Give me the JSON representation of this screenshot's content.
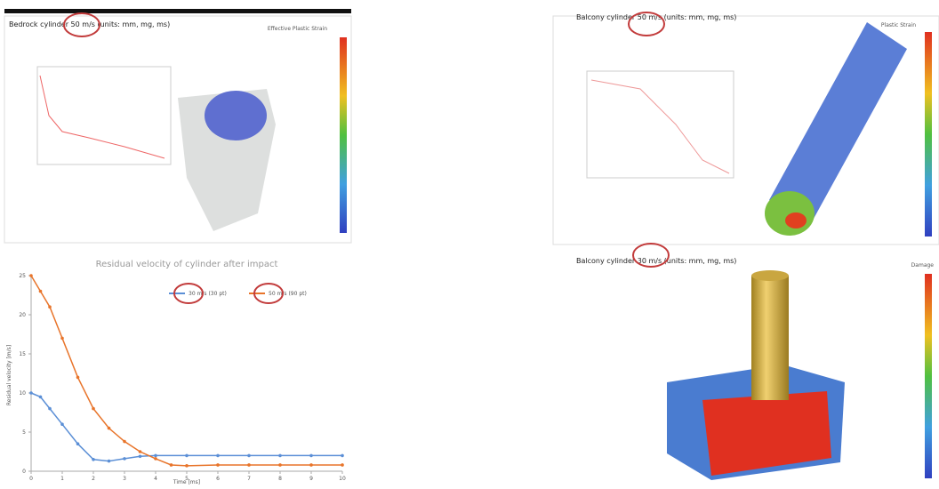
{
  "panels": [
    {
      "title": "Bedrock cylinder 50 m/s (units: mm, mg, ms)",
      "legend": "Effective Plastic Strain"
    },
    {
      "title": "Balcony cylinder 50 m/s (units: mm, mg, ms)",
      "legend": "Plastic Strain"
    },
    {
      "title": "Balcony cylinder 30 m/s (units: mm, mg, ms)",
      "legend": "Damage"
    }
  ],
  "chart_data": {
    "type": "line",
    "title": "Residual velocity of cylinder after impact",
    "x_label": "Time [ms]",
    "y_label": "Residual velocity [m/s]",
    "xlim": [
      0,
      10
    ],
    "xticks": [
      0,
      1,
      2,
      3,
      4,
      5,
      6,
      7,
      8,
      9,
      10
    ],
    "ylim": [
      0,
      25
    ],
    "yticks": [
      0,
      5,
      10,
      15,
      20,
      25
    ],
    "series": [
      {
        "name": "30 m/s (30 pt)",
        "color": "#5b8fd6",
        "x": [
          0,
          0.3,
          0.6,
          1,
          1.5,
          2,
          2.5,
          3,
          3.5,
          4,
          5,
          6,
          7,
          8,
          9,
          10
        ],
        "values": [
          10,
          9.5,
          8,
          6,
          3.5,
          1.5,
          1.3,
          1.6,
          1.9,
          2,
          2,
          2,
          2,
          2,
          2,
          2
        ]
      },
      {
        "name": "50 m/s (90 pt)",
        "color": "#e8742a",
        "x": [
          0,
          0.3,
          0.6,
          1,
          1.5,
          2,
          2.5,
          3,
          3.5,
          4,
          4.5,
          5,
          6,
          7,
          8,
          9,
          10
        ],
        "values": [
          25,
          23,
          21,
          17,
          12,
          8,
          5.5,
          3.8,
          2.5,
          1.6,
          0.8,
          0.7,
          0.8,
          0.8,
          0.8,
          0.8,
          0.8
        ]
      }
    ]
  }
}
